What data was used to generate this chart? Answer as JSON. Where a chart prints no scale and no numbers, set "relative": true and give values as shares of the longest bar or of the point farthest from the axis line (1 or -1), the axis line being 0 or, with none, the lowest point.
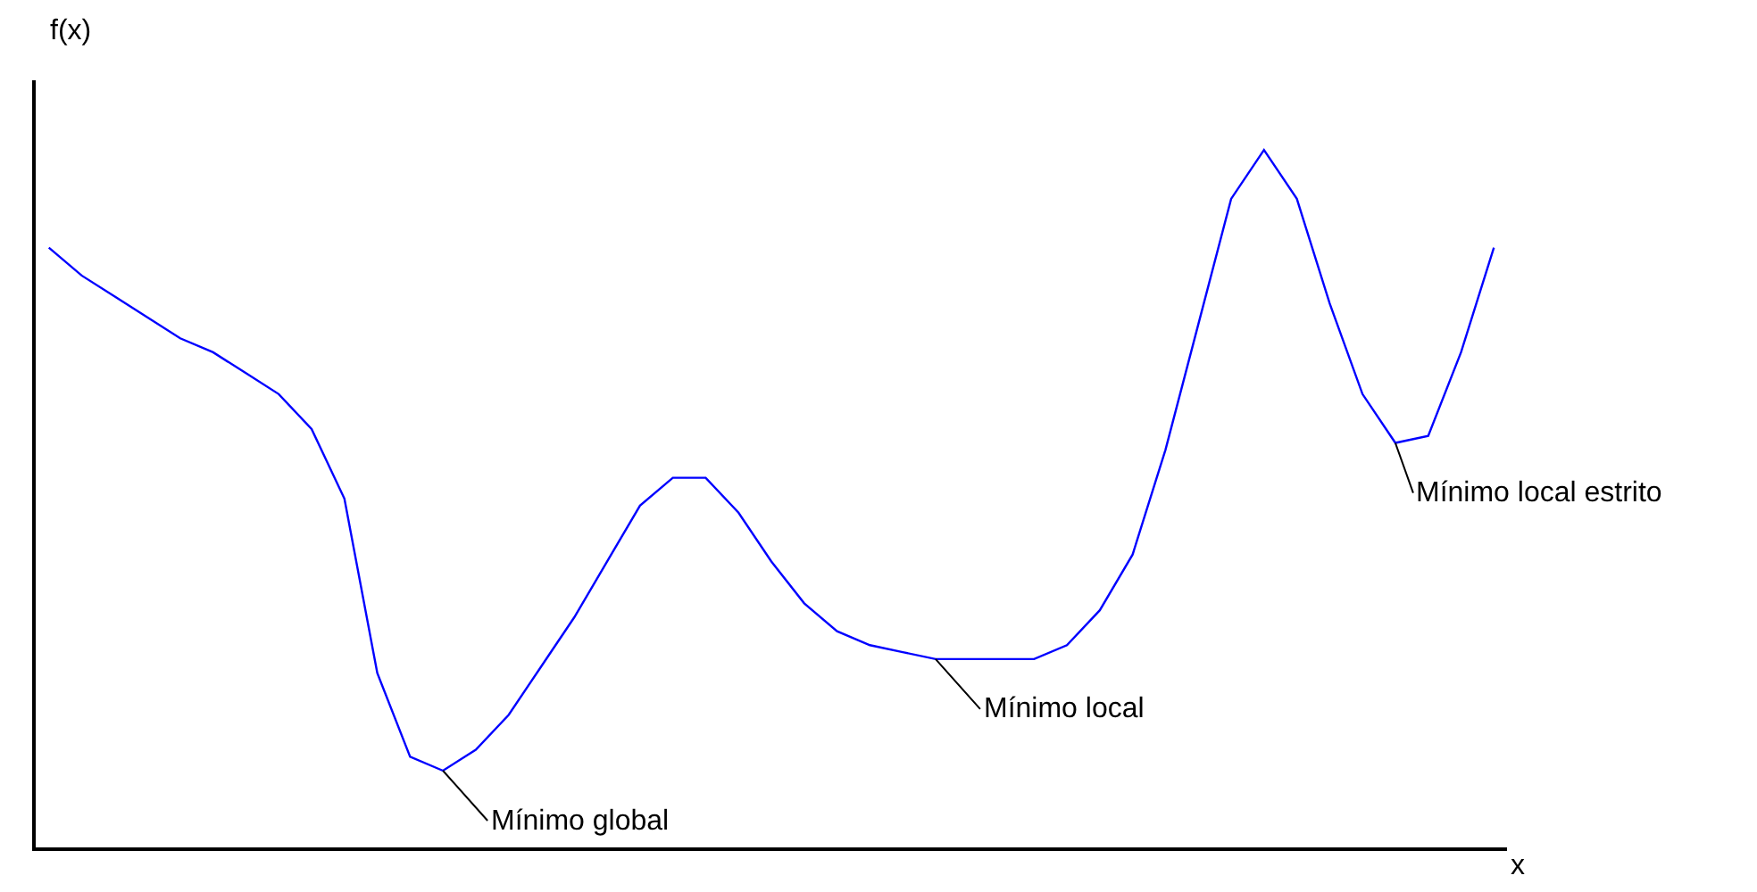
{
  "chart_data": {
    "type": "line",
    "relative": true,
    "xlabel": "x",
    "ylabel": "f(x)",
    "categories": [
      null,
      null,
      null,
      null,
      null,
      null,
      null,
      null,
      null,
      null,
      null,
      null,
      null,
      null,
      null,
      null,
      null,
      null,
      null,
      null,
      null,
      null,
      null,
      null,
      null,
      null,
      null,
      null,
      null,
      null,
      null,
      null,
      null,
      null,
      null,
      null,
      null,
      null,
      null,
      null,
      null,
      null,
      null,
      null,
      null
    ],
    "series": [
      {
        "color": "#0000ff",
        "values": [
          0.86,
          0.82,
          0.79,
          0.76,
          0.73,
          0.71,
          0.68,
          0.65,
          0.6,
          0.5,
          0.25,
          0.13,
          0.11,
          0.14,
          0.19,
          0.26,
          0.33,
          0.41,
          0.49,
          0.53,
          0.53,
          0.48,
          0.41,
          0.35,
          0.31,
          0.29,
          0.28,
          0.27,
          0.27,
          0.27,
          0.27,
          0.29,
          0.34,
          0.42,
          0.57,
          0.75,
          0.93,
          1,
          0.93,
          0.78,
          0.65,
          0.58,
          0.59,
          0.71,
          0.86
        ]
      }
    ],
    "annotations": [
      "Mínimo global",
      "Mínimo local",
      "Mínimo local estrito"
    ],
    "legend": false,
    "marker": "none",
    "line_style": "solid"
  }
}
